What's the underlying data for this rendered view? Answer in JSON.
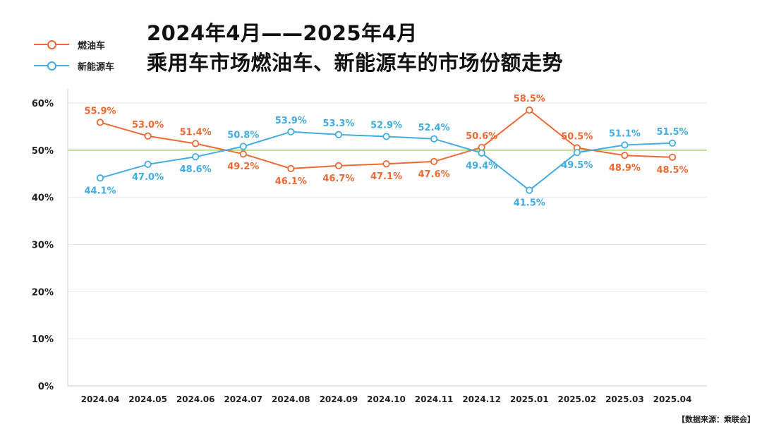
{
  "title_lines": [
    "2024年4月——2025年4月",
    "乘用车市场燃油车、新能源车的市场份额走势"
  ],
  "legend": [
    {
      "label": "燃油车",
      "color": "#EE6A34"
    },
    {
      "label": "新能源车",
      "color": "#43ADE2"
    }
  ],
  "source": "【数据来源：乘联会】",
  "chart_data": {
    "type": "line",
    "title": "2024年4月——2025年4月 乘用车市场燃油车、新能源车的市场份额走势",
    "xlabel": "",
    "ylabel": "",
    "categories": [
      "2024.04",
      "2024.05",
      "2024.06",
      "2024.07",
      "2024.08",
      "2024.09",
      "2024.10",
      "2024.11",
      "2024.12",
      "2025.01",
      "2025.02",
      "2025.03",
      "2025.04"
    ],
    "y_ticks": [
      0,
      10,
      20,
      30,
      40,
      50,
      60
    ],
    "y_tick_labels": [
      "0%",
      "10%",
      "20%",
      "30%",
      "40%",
      "50%",
      "60%"
    ],
    "ylim": [
      0,
      60
    ],
    "grid": true,
    "reference_line": {
      "value": 50,
      "color": "#A8D86E"
    },
    "legend_position": "top-left",
    "series": [
      {
        "name": "燃油车",
        "color": "#EE6A34",
        "values": [
          55.9,
          53.0,
          51.4,
          49.2,
          46.1,
          46.7,
          47.1,
          47.6,
          50.6,
          58.5,
          50.5,
          48.9,
          48.5
        ],
        "labels": [
          "55.9%",
          "53.0%",
          "51.4%",
          "49.2%",
          "46.1%",
          "46.7%",
          "47.1%",
          "47.6%",
          "50.6%",
          "58.5%",
          "50.5%",
          "48.9%",
          "48.5%"
        ]
      },
      {
        "name": "新能源车",
        "color": "#43ADE2",
        "values": [
          44.1,
          47.0,
          48.6,
          50.8,
          53.9,
          53.3,
          52.9,
          52.4,
          49.4,
          41.5,
          49.5,
          51.1,
          51.5
        ],
        "labels": [
          "44.1%",
          "47.0%",
          "48.6%",
          "50.8%",
          "53.9%",
          "53.3%",
          "52.9%",
          "52.4%",
          "49.4%",
          "41.5%",
          "49.5%",
          "51.1%",
          "51.5%"
        ]
      }
    ]
  }
}
